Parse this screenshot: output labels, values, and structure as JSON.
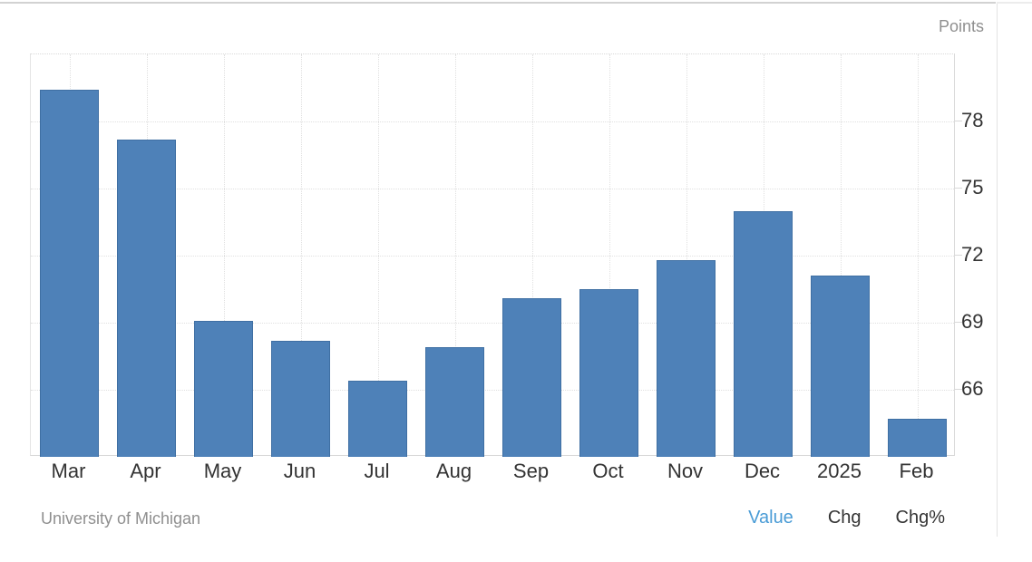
{
  "axis": {
    "title": "Points"
  },
  "footer": {
    "source": "University of Michigan",
    "links": [
      {
        "label": "Value",
        "active": true
      },
      {
        "label": "Chg",
        "active": false
      },
      {
        "label": "Chg%",
        "active": false
      }
    ]
  },
  "colors": {
    "bar": "#4e81b8",
    "bar_border": "#3f6fa3",
    "active_link": "#4a9cd6",
    "text": "#333333",
    "muted_text": "#8f8f8f",
    "gridline": "#e0e0e0"
  },
  "chart_data": {
    "type": "bar",
    "title": "",
    "categories": [
      "Mar",
      "Apr",
      "May",
      "Jun",
      "Jul",
      "Aug",
      "Sep",
      "Oct",
      "Nov",
      "Dec",
      "2025",
      "Feb"
    ],
    "values": [
      79.4,
      77.2,
      69.1,
      68.2,
      66.4,
      67.9,
      70.1,
      70.5,
      71.8,
      74.0,
      71.1,
      64.7
    ],
    "xlabel": "",
    "ylabel": "Points",
    "ylim": [
      63,
      81
    ],
    "yticks": [
      66,
      69,
      72,
      75,
      78
    ],
    "grid": true,
    "legend_position": "none",
    "source": "University of Michigan"
  }
}
